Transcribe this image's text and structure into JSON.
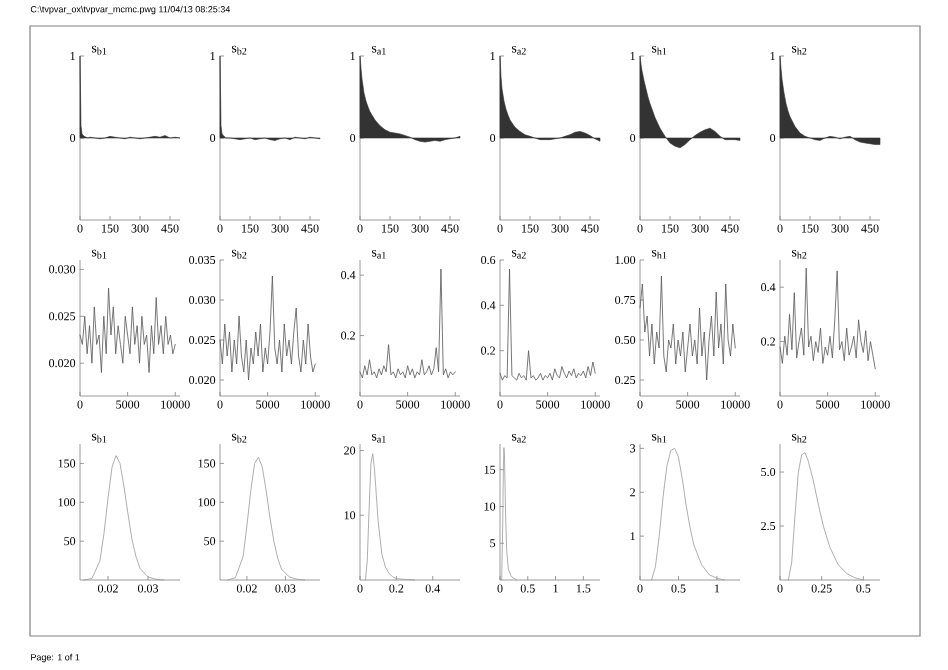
{
  "chart_data": [
    {
      "type": "area",
      "title": "s$_{b1}$",
      "annotations": [
        "C:\\tvpvar_ox\\tvpvar_mcmc.pwg  11/04/13 08:25:34"
      ],
      "color": "#333333",
      "xlim": [
        0,
        500
      ],
      "ylim": [
        -1,
        1
      ],
      "xticks": [
        0,
        150,
        300,
        450
      ],
      "yticks": [
        0,
        1
      ],
      "x": [
        0,
        5,
        10,
        20,
        30,
        40,
        50,
        75,
        100,
        125,
        150,
        175,
        200,
        225,
        250,
        275,
        300,
        325,
        350,
        375,
        400,
        425,
        450,
        475,
        500
      ],
      "values": [
        1,
        0.15,
        0.05,
        0.02,
        0.01,
        0.0,
        0.01,
        0.0,
        -0.01,
        0.0,
        0.02,
        0.01,
        0.0,
        -0.01,
        0.01,
        0.0,
        -0.01,
        0.0,
        0.01,
        0.02,
        0.01,
        0.03,
        0.0,
        0.01,
        0.0
      ]
    },
    {
      "type": "area",
      "title": "s$_{b2}$",
      "color": "#333333",
      "xlim": [
        0,
        500
      ],
      "ylim": [
        -1,
        1
      ],
      "xticks": [
        0,
        150,
        300,
        450
      ],
      "yticks": [
        0,
        1
      ],
      "x": [
        0,
        5,
        10,
        20,
        30,
        40,
        50,
        75,
        100,
        125,
        150,
        175,
        200,
        225,
        250,
        275,
        300,
        325,
        350,
        375,
        400,
        425,
        450,
        475,
        500
      ],
      "values": [
        1,
        0.15,
        0.05,
        0.02,
        0.0,
        0.0,
        0.0,
        -0.01,
        -0.02,
        -0.01,
        0.0,
        -0.02,
        -0.01,
        0.0,
        -0.02,
        -0.03,
        -0.01,
        0.0,
        -0.02,
        0.01,
        0.0,
        -0.01,
        0.01,
        0.0,
        -0.01
      ]
    },
    {
      "type": "area",
      "title": "s$_{a1}$",
      "color": "#333333",
      "xlim": [
        0,
        500
      ],
      "ylim": [
        -1,
        1
      ],
      "xticks": [
        0,
        150,
        300,
        450
      ],
      "yticks": [
        0,
        1
      ],
      "x": [
        0,
        5,
        10,
        20,
        30,
        40,
        50,
        75,
        100,
        125,
        150,
        175,
        200,
        225,
        250,
        275,
        300,
        325,
        350,
        375,
        400,
        425,
        450,
        475,
        500
      ],
      "values": [
        1,
        0.85,
        0.72,
        0.55,
        0.45,
        0.38,
        0.32,
        0.22,
        0.15,
        0.1,
        0.07,
        0.06,
        0.05,
        0.03,
        0.01,
        -0.02,
        -0.04,
        -0.05,
        -0.04,
        -0.03,
        -0.04,
        -0.02,
        -0.01,
        0.0,
        0.02
      ]
    },
    {
      "type": "area",
      "title": "s$_{a2}$",
      "color": "#333333",
      "xlim": [
        0,
        500
      ],
      "ylim": [
        -1,
        1
      ],
      "xticks": [
        0,
        150,
        300,
        450
      ],
      "yticks": [
        0,
        1
      ],
      "x": [
        0,
        5,
        10,
        20,
        30,
        40,
        50,
        75,
        100,
        125,
        150,
        175,
        200,
        225,
        250,
        275,
        300,
        325,
        350,
        375,
        400,
        425,
        450,
        475,
        500
      ],
      "values": [
        1,
        0.75,
        0.6,
        0.45,
        0.35,
        0.28,
        0.22,
        0.13,
        0.08,
        0.04,
        0.02,
        0.0,
        -0.02,
        -0.02,
        -0.02,
        -0.01,
        0.0,
        0.02,
        0.04,
        0.07,
        0.08,
        0.06,
        0.03,
        -0.01,
        -0.04
      ]
    },
    {
      "type": "area",
      "title": "s$_{h1}$",
      "color": "#333333",
      "xlim": [
        0,
        500
      ],
      "ylim": [
        -1,
        1
      ],
      "xticks": [
        0,
        150,
        300,
        450
      ],
      "yticks": [
        0,
        1
      ],
      "x": [
        0,
        5,
        10,
        20,
        30,
        40,
        50,
        75,
        100,
        125,
        150,
        175,
        200,
        225,
        250,
        275,
        300,
        325,
        350,
        375,
        400,
        425,
        450,
        475,
        500
      ],
      "values": [
        1,
        0.9,
        0.82,
        0.7,
        0.6,
        0.5,
        0.42,
        0.25,
        0.12,
        0.02,
        -0.06,
        -0.1,
        -0.12,
        -0.08,
        -0.02,
        0.03,
        0.07,
        0.1,
        0.12,
        0.08,
        0.02,
        -0.02,
        -0.02,
        -0.02,
        -0.03
      ]
    },
    {
      "type": "area",
      "title": "s$_{h2}$",
      "color": "#333333",
      "xlim": [
        0,
        500
      ],
      "ylim": [
        -1,
        1
      ],
      "xticks": [
        0,
        150,
        300,
        450
      ],
      "yticks": [
        0,
        1
      ],
      "x": [
        0,
        5,
        10,
        20,
        30,
        40,
        50,
        75,
        100,
        125,
        150,
        175,
        200,
        225,
        250,
        275,
        300,
        325,
        350,
        375,
        400,
        425,
        450,
        475,
        500
      ],
      "values": [
        1,
        0.85,
        0.72,
        0.55,
        0.42,
        0.33,
        0.26,
        0.14,
        0.06,
        0.02,
        0.0,
        -0.02,
        -0.03,
        0.0,
        0.02,
        0.01,
        -0.01,
        0.01,
        0.02,
        -0.02,
        -0.05,
        -0.06,
        -0.07,
        -0.08,
        -0.08
      ]
    },
    {
      "type": "line",
      "title": "s$_{b1}$",
      "color": "#555555",
      "xlim": [
        0,
        10500
      ],
      "ylim": [
        0.0165,
        0.031
      ],
      "xticks": [
        0,
        5000,
        10000
      ],
      "yticks": [
        {
          "value": 0.02,
          "label": "0.020"
        },
        {
          "value": 0.025,
          "label": "0.025"
        },
        {
          "value": 0.03,
          "label": "0.030"
        }
      ],
      "x": [
        0,
        250,
        500,
        750,
        1000,
        1250,
        1500,
        1750,
        2000,
        2250,
        2500,
        2750,
        3000,
        3250,
        3500,
        3750,
        4000,
        4250,
        4500,
        4750,
        5000,
        5250,
        5500,
        5750,
        6000,
        6250,
        6500,
        6750,
        7000,
        7250,
        7500,
        7750,
        8000,
        8250,
        8500,
        8750,
        9000,
        9250,
        9500,
        9750,
        10000
      ],
      "values": [
        0.023,
        0.022,
        0.025,
        0.021,
        0.024,
        0.02,
        0.026,
        0.022,
        0.023,
        0.019,
        0.025,
        0.021,
        0.028,
        0.023,
        0.026,
        0.021,
        0.024,
        0.022,
        0.02,
        0.025,
        0.023,
        0.021,
        0.026,
        0.022,
        0.024,
        0.02,
        0.025,
        0.022,
        0.023,
        0.019,
        0.024,
        0.021,
        0.027,
        0.022,
        0.024,
        0.021,
        0.025,
        0.022,
        0.023,
        0.021,
        0.022
      ]
    },
    {
      "type": "line",
      "title": "s$_{b2}$",
      "color": "#555555",
      "xlim": [
        0,
        10500
      ],
      "ylim": [
        0.018,
        0.035
      ],
      "xticks": [
        0,
        5000,
        10000
      ],
      "yticks": [
        {
          "value": 0.02,
          "label": "0.020"
        },
        {
          "value": 0.025,
          "label": "0.025"
        },
        {
          "value": 0.03,
          "label": "0.030"
        },
        {
          "value": 0.035,
          "label": "0.035"
        }
      ],
      "x": [
        0,
        250,
        500,
        750,
        1000,
        1250,
        1500,
        1750,
        2000,
        2250,
        2500,
        2750,
        3000,
        3250,
        3500,
        3750,
        4000,
        4250,
        4500,
        4750,
        5000,
        5250,
        5500,
        5750,
        6000,
        6250,
        6500,
        6750,
        7000,
        7250,
        7500,
        7750,
        8000,
        8250,
        8500,
        8750,
        9000,
        9250,
        9500,
        9750,
        10000
      ],
      "values": [
        0.025,
        0.022,
        0.027,
        0.023,
        0.026,
        0.021,
        0.025,
        0.022,
        0.028,
        0.023,
        0.021,
        0.025,
        0.02,
        0.024,
        0.022,
        0.026,
        0.023,
        0.027,
        0.021,
        0.024,
        0.022,
        0.026,
        0.033,
        0.024,
        0.022,
        0.025,
        0.021,
        0.027,
        0.023,
        0.025,
        0.022,
        0.026,
        0.029,
        0.023,
        0.021,
        0.025,
        0.022,
        0.027,
        0.023,
        0.021,
        0.022
      ]
    },
    {
      "type": "line",
      "title": "s$_{a1}$",
      "color": "#555555",
      "xlim": [
        0,
        10500
      ],
      "ylim": [
        0,
        0.45
      ],
      "xticks": [
        0,
        5000,
        10000
      ],
      "yticks": [
        0.2,
        0.4
      ],
      "x": [
        0,
        250,
        500,
        750,
        1000,
        1250,
        1500,
        1750,
        2000,
        2250,
        2500,
        2750,
        3000,
        3250,
        3500,
        3750,
        4000,
        4250,
        4500,
        4750,
        5000,
        5250,
        5500,
        5750,
        6000,
        6250,
        6500,
        6750,
        7000,
        7250,
        7500,
        7750,
        8000,
        8250,
        8500,
        8750,
        9000,
        9250,
        9500,
        9750,
        10000
      ],
      "values": [
        0.08,
        0.06,
        0.1,
        0.07,
        0.12,
        0.07,
        0.08,
        0.06,
        0.09,
        0.07,
        0.1,
        0.08,
        0.17,
        0.07,
        0.08,
        0.06,
        0.09,
        0.07,
        0.08,
        0.06,
        0.1,
        0.07,
        0.09,
        0.06,
        0.08,
        0.07,
        0.12,
        0.07,
        0.08,
        0.1,
        0.07,
        0.09,
        0.16,
        0.08,
        0.42,
        0.07,
        0.09,
        0.06,
        0.08,
        0.07,
        0.08
      ]
    },
    {
      "type": "line",
      "title": "s$_{a2}$",
      "color": "#555555",
      "xlim": [
        0,
        10500
      ],
      "ylim": [
        0,
        0.6
      ],
      "xticks": [
        0,
        5000,
        10000
      ],
      "yticks": [
        0.2,
        0.4,
        0.6
      ],
      "x": [
        0,
        250,
        500,
        750,
        1000,
        1250,
        1500,
        1750,
        2000,
        2250,
        2500,
        2750,
        3000,
        3250,
        3500,
        3750,
        4000,
        4250,
        4500,
        4750,
        5000,
        5250,
        5500,
        5750,
        6000,
        6250,
        6500,
        6750,
        7000,
        7250,
        7500,
        7750,
        8000,
        8250,
        8500,
        8750,
        9000,
        9250,
        9500,
        9750,
        10000
      ],
      "values": [
        0.1,
        0.07,
        0.09,
        0.08,
        0.56,
        0.09,
        0.08,
        0.07,
        0.1,
        0.08,
        0.09,
        0.07,
        0.2,
        0.08,
        0.09,
        0.07,
        0.08,
        0.1,
        0.07,
        0.09,
        0.08,
        0.1,
        0.07,
        0.12,
        0.09,
        0.08,
        0.13,
        0.1,
        0.08,
        0.11,
        0.09,
        0.12,
        0.08,
        0.1,
        0.09,
        0.11,
        0.08,
        0.13,
        0.09,
        0.15,
        0.1
      ]
    },
    {
      "type": "line",
      "title": "s$_{h1}$",
      "color": "#555555",
      "xlim": [
        0,
        10500
      ],
      "ylim": [
        0.15,
        1.0
      ],
      "xticks": [
        0,
        5000,
        10000
      ],
      "yticks": [
        {
          "value": 0.25,
          "label": "0.25"
        },
        {
          "value": 0.5,
          "label": "0.50"
        },
        {
          "value": 0.75,
          "label": "0.75"
        },
        {
          "value": 1.0,
          "label": "1.00"
        }
      ],
      "x": [
        0,
        250,
        500,
        750,
        1000,
        1250,
        1500,
        1750,
        2000,
        2250,
        2500,
        2750,
        3000,
        3250,
        3500,
        3750,
        4000,
        4250,
        4500,
        4750,
        5000,
        5250,
        5500,
        5750,
        6000,
        6250,
        6500,
        6750,
        7000,
        7250,
        7500,
        7750,
        8000,
        8250,
        8500,
        8750,
        9000,
        9250,
        9500,
        9750,
        10000
      ],
      "values": [
        0.7,
        0.85,
        0.55,
        0.65,
        0.4,
        0.6,
        0.35,
        0.55,
        0.45,
        0.9,
        0.4,
        0.3,
        0.5,
        0.45,
        0.6,
        0.35,
        0.5,
        0.4,
        0.55,
        0.3,
        0.45,
        0.6,
        0.4,
        0.5,
        0.35,
        0.7,
        0.4,
        0.55,
        0.25,
        0.5,
        0.65,
        0.4,
        0.8,
        0.45,
        0.6,
        0.35,
        0.85,
        0.5,
        0.4,
        0.6,
        0.45
      ]
    },
    {
      "type": "line",
      "title": "s$_{h2}$",
      "color": "#555555",
      "xlim": [
        0,
        10500
      ],
      "ylim": [
        0,
        0.5
      ],
      "xticks": [
        0,
        5000,
        10000
      ],
      "yticks": [
        0.2,
        0.4
      ],
      "x": [
        0,
        250,
        500,
        750,
        1000,
        1250,
        1500,
        1750,
        2000,
        2250,
        2500,
        2750,
        3000,
        3250,
        3500,
        3750,
        4000,
        4250,
        4500,
        4750,
        5000,
        5250,
        5500,
        5750,
        6000,
        6250,
        6500,
        6750,
        7000,
        7250,
        7500,
        7750,
        8000,
        8250,
        8500,
        8750,
        9000,
        9250,
        9500,
        9750,
        10000
      ],
      "values": [
        0.18,
        0.12,
        0.22,
        0.15,
        0.3,
        0.17,
        0.38,
        0.14,
        0.2,
        0.25,
        0.15,
        0.47,
        0.18,
        0.22,
        0.13,
        0.2,
        0.16,
        0.25,
        0.12,
        0.18,
        0.15,
        0.22,
        0.14,
        0.28,
        0.46,
        0.17,
        0.2,
        0.13,
        0.25,
        0.15,
        0.18,
        0.22,
        0.14,
        0.28,
        0.2,
        0.16,
        0.24,
        0.13,
        0.2,
        0.15,
        0.1
      ]
    },
    {
      "type": "line",
      "title": "s$_{b1}$",
      "color": "#999999",
      "xlim": [
        0.013,
        0.038
      ],
      "ylim": [
        0,
        175
      ],
      "xticks": [
        0.02,
        0.03
      ],
      "yticks": [
        50,
        100,
        150
      ],
      "x": [
        0.014,
        0.016,
        0.018,
        0.019,
        0.02,
        0.021,
        0.022,
        0.023,
        0.024,
        0.025,
        0.026,
        0.027,
        0.028,
        0.03,
        0.032,
        0.034
      ],
      "values": [
        0,
        2,
        25,
        60,
        105,
        145,
        160,
        150,
        120,
        85,
        52,
        30,
        15,
        4,
        1,
        0
      ]
    },
    {
      "type": "line",
      "title": "s$_{b2}$",
      "color": "#999999",
      "xlim": [
        0.013,
        0.039
      ],
      "ylim": [
        0,
        175
      ],
      "xticks": [
        0.02,
        0.03
      ],
      "yticks": [
        50,
        100,
        150
      ],
      "x": [
        0.015,
        0.017,
        0.019,
        0.02,
        0.021,
        0.022,
        0.023,
        0.024,
        0.025,
        0.026,
        0.027,
        0.028,
        0.029,
        0.031,
        0.033,
        0.035
      ],
      "values": [
        0,
        3,
        30,
        70,
        115,
        150,
        158,
        145,
        115,
        80,
        50,
        28,
        14,
        4,
        1,
        0
      ]
    },
    {
      "type": "line",
      "title": "s$_{a1}$",
      "color": "#999999",
      "xlim": [
        0,
        0.55
      ],
      "ylim": [
        0,
        21
      ],
      "xticks": [
        0,
        0.2,
        0.4
      ],
      "yticks": [
        10,
        20
      ],
      "x": [
        0.03,
        0.04,
        0.05,
        0.06,
        0.07,
        0.08,
        0.09,
        0.1,
        0.12,
        0.14,
        0.16,
        0.18,
        0.2,
        0.25,
        0.3
      ],
      "values": [
        0,
        3,
        11,
        18,
        19.5,
        17,
        13,
        9,
        4,
        2,
        1,
        0.5,
        0.2,
        0.1,
        0
      ]
    },
    {
      "type": "line",
      "title": "s$_{a2}$",
      "color": "#999999",
      "xlim": [
        0,
        1.8
      ],
      "ylim": [
        0,
        18.5
      ],
      "xticks": [
        0,
        0.5,
        1,
        1.5
      ],
      "yticks": [
        5,
        10,
        15
      ],
      "x": [
        0.03,
        0.05,
        0.06,
        0.07,
        0.08,
        0.09,
        0.1,
        0.12,
        0.15,
        0.2,
        0.3
      ],
      "values": [
        0,
        8,
        15,
        18,
        17,
        12.98,
        9,
        4,
        1.5,
        0.5,
        0
      ]
    },
    {
      "type": "line",
      "title": "s$_{h1}$",
      "color": "#999999",
      "xlim": [
        0,
        1.3
      ],
      "ylim": [
        0,
        3.1
      ],
      "xticks": [
        0,
        0.5,
        1
      ],
      "yticks": [
        1,
        2,
        3
      ],
      "x": [
        0.15,
        0.2,
        0.25,
        0.3,
        0.35,
        0.4,
        0.45,
        0.5,
        0.55,
        0.6,
        0.65,
        0.7,
        0.8,
        0.9,
        1.0,
        1.1
      ],
      "values": [
        0,
        0.3,
        1.0,
        1.9,
        2.6,
        2.95,
        3.0,
        2.8,
        2.3,
        1.7,
        1.2,
        0.8,
        0.35,
        0.12,
        0.04,
        0
      ]
    },
    {
      "type": "line",
      "title": "s$_{h2}$",
      "annotations": [
        "Page: 1 of 1"
      ],
      "color": "#999999",
      "xlim": [
        0,
        0.6
      ],
      "ylim": [
        0,
        6.3
      ],
      "xticks": [
        0,
        0.25,
        0.5
      ],
      "yticks": [
        {
          "value": 2.5,
          "label": "2.5"
        },
        {
          "value": 5,
          "label": "5.0"
        }
      ],
      "x": [
        0.05,
        0.07,
        0.09,
        0.11,
        0.13,
        0.15,
        0.17,
        0.2,
        0.23,
        0.26,
        0.3,
        0.35,
        0.4,
        0.45,
        0.5
      ],
      "values": [
        0,
        0.8,
        3.0,
        5.0,
        5.8,
        5.9,
        5.5,
        4.6,
        3.5,
        2.5,
        1.5,
        0.7,
        0.3,
        0.1,
        0
      ]
    }
  ]
}
